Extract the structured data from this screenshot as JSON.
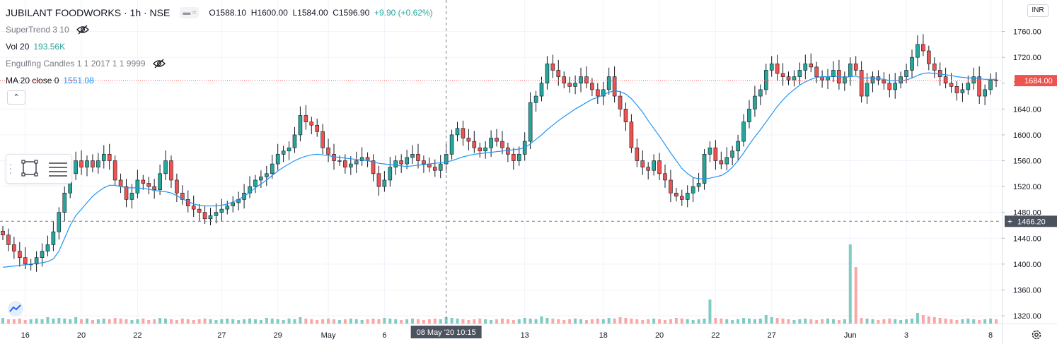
{
  "header": {
    "symbol": "JUBILANT FOODWORKS · 1h · NSE",
    "open": "O1588.10",
    "high": "H1600.00",
    "low": "L1584.00",
    "close": "C1596.90",
    "change": "+9.90 (+0.62%)"
  },
  "indicators": [
    {
      "name": "SuperTrend 3 10",
      "value": ""
    },
    {
      "name": "Vol 20",
      "value": "193.56K"
    },
    {
      "name": "Engulfing Candles 1 1 2017 1 1 9999",
      "value": ""
    },
    {
      "name": "MA 20 close 0",
      "value": "1551.08"
    }
  ],
  "currency": "INR",
  "colors": {
    "up": "#26a69a",
    "down": "#ef5350",
    "ma": "#2196f3",
    "volume_up": "#80cbc4",
    "volume_down": "#f7a9a7",
    "last_price": "#ef5350",
    "crosshair_label": "#4c525e"
  },
  "icons": [
    "eye-hidden-icon",
    "chevron-up-icon",
    "rectangle-tool-icon",
    "lines-tool-icon",
    "settings-gear-icon",
    "tradingview-logo-icon"
  ],
  "chart_data": {
    "type": "candlestick",
    "y_ticks": [
      1320,
      1360,
      1400,
      1440,
      1480,
      1520,
      1560,
      1600,
      1640,
      1680,
      1720,
      1760
    ],
    "y_tick_labels": [
      "1320.00",
      "1360.00",
      "1400.00",
      "1440.00",
      "1480.00",
      "1520.00",
      "1560.00",
      "1600.00",
      "1640.00",
      "1680.00",
      "1720.00",
      "1760.00"
    ],
    "ylim": [
      1308,
      1800
    ],
    "last_price": 1684.0,
    "last_price_label": "1684.00",
    "crosshair_price": 1466.2,
    "crosshair_price_label": "1466.20",
    "crosshair_time_label": "08 May '20   10:15",
    "crosshair_x_index": 79,
    "x_labels": [
      {
        "label": "16",
        "index": 4
      },
      {
        "label": "20",
        "index": 14
      },
      {
        "label": "22",
        "index": 24
      },
      {
        "label": "27",
        "index": 39
      },
      {
        "label": "29",
        "index": 49
      },
      {
        "label": "May",
        "index": 58
      },
      {
        "label": "6",
        "index": 68
      },
      {
        "label": "13",
        "index": 93
      },
      {
        "label": "18",
        "index": 107
      },
      {
        "label": "20",
        "index": 117
      },
      {
        "label": "22",
        "index": 127
      },
      {
        "label": "27",
        "index": 137
      },
      {
        "label": "Jun",
        "index": 151
      },
      {
        "label": "3",
        "index": 161
      },
      {
        "label": "8",
        "index": 176
      }
    ],
    "close": [
      1445,
      1430,
      1420,
      1410,
      1400,
      1400,
      1410,
      1420,
      1430,
      1450,
      1480,
      1510,
      1540,
      1560,
      1550,
      1560,
      1550,
      1560,
      1570,
      1560,
      1530,
      1520,
      1500,
      1510,
      1530,
      1525,
      1520,
      1515,
      1540,
      1560,
      1530,
      1510,
      1500,
      1490,
      1485,
      1480,
      1470,
      1475,
      1480,
      1485,
      1490,
      1495,
      1500,
      1510,
      1520,
      1530,
      1535,
      1540,
      1555,
      1570,
      1575,
      1580,
      1600,
      1630,
      1620,
      1615,
      1605,
      1580,
      1570,
      1560,
      1560,
      1550,
      1555,
      1560,
      1565,
      1560,
      1540,
      1520,
      1530,
      1550,
      1560,
      1555,
      1565,
      1570,
      1560,
      1555,
      1550,
      1545,
      1555,
      1570,
      1600,
      1610,
      1595,
      1590,
      1580,
      1575,
      1580,
      1595,
      1590,
      1580,
      1570,
      1560,
      1570,
      1590,
      1650,
      1660,
      1680,
      1710,
      1700,
      1690,
      1680,
      1675,
      1680,
      1690,
      1680,
      1670,
      1660,
      1670,
      1690,
      1660,
      1640,
      1620,
      1580,
      1560,
      1550,
      1545,
      1560,
      1540,
      1530,
      1510,
      1505,
      1500,
      1510,
      1520,
      1525,
      1570,
      1580,
      1560,
      1555,
      1565,
      1575,
      1590,
      1620,
      1640,
      1660,
      1670,
      1700,
      1710,
      1695,
      1690,
      1685,
      1690,
      1700,
      1710,
      1705,
      1690,
      1685,
      1690,
      1700,
      1680,
      1690,
      1710,
      1700,
      1660,
      1680,
      1690,
      1685,
      1680,
      1670,
      1680,
      1690,
      1700,
      1720,
      1740,
      1730,
      1710,
      1700,
      1690,
      1680,
      1675,
      1665,
      1670,
      1680,
      1690,
      1660,
      1670,
      1685,
      1684
    ],
    "ma": [
      1395,
      1396,
      1397,
      1398,
      1399,
      1400,
      1401,
      1402,
      1404,
      1408,
      1420,
      1440,
      1460,
      1475,
      1485,
      1495,
      1505,
      1512,
      1518,
      1522,
      1522,
      1520,
      1518,
      1518,
      1518,
      1517,
      1516,
      1514,
      1513,
      1512,
      1510,
      1506,
      1501,
      1497,
      1493,
      1491,
      1490,
      1490,
      1490,
      1491,
      1493,
      1496,
      1500,
      1505,
      1511,
      1518,
      1524,
      1530,
      1537,
      1544,
      1550,
      1555,
      1560,
      1564,
      1567,
      1569,
      1570,
      1569,
      1568,
      1566,
      1565,
      1564,
      1563,
      1562,
      1561,
      1560,
      1558,
      1556,
      1555,
      1554,
      1553,
      1552,
      1551,
      1552,
      1553,
      1554,
      1555,
      1556,
      1557,
      1558,
      1560,
      1563,
      1566,
      1568,
      1570,
      1571,
      1572,
      1573,
      1574,
      1575,
      1576,
      1577,
      1578,
      1580,
      1586,
      1593,
      1600,
      1608,
      1615,
      1622,
      1628,
      1634,
      1640,
      1645,
      1650,
      1655,
      1658,
      1662,
      1666,
      1668,
      1667,
      1663,
      1656,
      1646,
      1635,
      1622,
      1610,
      1598,
      1585,
      1572,
      1560,
      1548,
      1540,
      1534,
      1532,
      1532,
      1533,
      1535,
      1537,
      1542,
      1550,
      1560,
      1572,
      1585,
      1597,
      1608,
      1620,
      1632,
      1644,
      1654,
      1663,
      1670,
      1677,
      1682,
      1686,
      1689,
      1690,
      1690,
      1691,
      1690,
      1689,
      1690,
      1691,
      1688,
      1688,
      1688,
      1687,
      1686,
      1684,
      1684,
      1684,
      1685,
      1688,
      1692,
      1695,
      1696,
      1695,
      1694,
      1693,
      1692,
      1690,
      1689,
      1688,
      1688,
      1687,
      1686,
      1686,
      1686
    ],
    "volume": [
      8,
      6,
      6,
      7,
      5,
      6,
      7,
      6,
      9,
      7,
      8,
      7,
      6,
      9,
      6,
      7,
      5,
      6,
      7,
      6,
      8,
      7,
      6,
      5,
      6,
      7,
      5,
      6,
      8,
      7,
      6,
      5,
      7,
      6,
      5,
      6,
      7,
      6,
      5,
      6,
      7,
      6,
      5,
      6,
      7,
      6,
      5,
      8,
      7,
      6,
      5,
      7,
      6,
      9,
      7,
      6,
      5,
      6,
      7,
      6,
      5,
      6,
      7,
      6,
      5,
      6,
      7,
      6,
      8,
      7,
      6,
      5,
      6,
      7,
      6,
      5,
      6,
      7,
      6,
      9,
      8,
      7,
      6,
      5,
      6,
      7,
      6,
      5,
      6,
      7,
      6,
      5,
      6,
      8,
      7,
      6,
      10,
      8,
      7,
      6,
      5,
      6,
      7,
      6,
      5,
      6,
      7,
      6,
      8,
      7,
      9,
      8,
      7,
      6,
      5,
      6,
      7,
      6,
      5,
      6,
      8,
      7,
      6,
      5,
      6,
      7,
      34,
      8,
      7,
      6,
      5,
      6,
      8,
      7,
      6,
      7,
      12,
      9,
      8,
      7,
      6,
      5,
      6,
      7,
      6,
      5,
      6,
      7,
      6,
      5,
      6,
      112,
      80,
      8,
      7,
      6,
      5,
      6,
      7,
      6,
      5,
      6,
      7,
      15,
      12,
      10,
      9,
      8,
      7,
      6,
      5,
      6,
      7,
      6,
      5,
      6,
      7,
      6
    ],
    "x": [],
    "title": ""
  }
}
